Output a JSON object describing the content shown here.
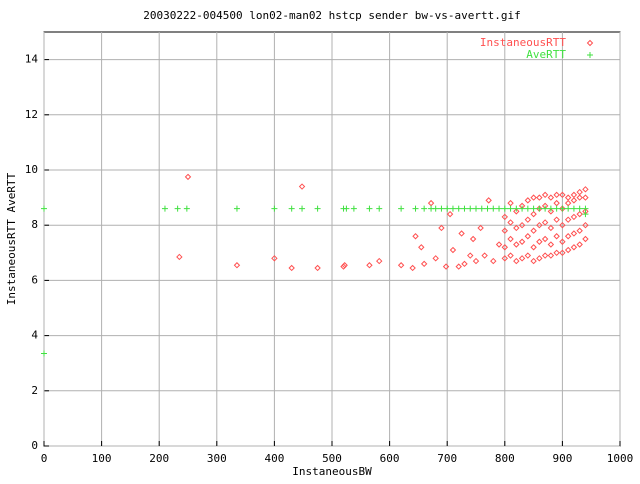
{
  "chart_data": {
    "type": "scatter",
    "title": "20030222-004500 lon02-man02 hstcp sender bw-vs-avertt.gif",
    "x_label": "InstaneousBW",
    "y_label": "InstaneousRTT AveRTT",
    "xlim": [
      0,
      1000
    ],
    "ylim": [
      0,
      15
    ],
    "xticks": [
      0,
      100,
      200,
      300,
      400,
      500,
      600,
      700,
      800,
      900,
      1000
    ],
    "yticks": [
      0,
      2,
      4,
      6,
      8,
      10,
      12,
      14
    ],
    "grid": true,
    "legend": "top-right",
    "series": [
      {
        "name": "InstaneousRTT",
        "color": "#ff5050",
        "marker": "diamond",
        "x": [
          250,
          235,
          335,
          400,
          430,
          448,
          475,
          520,
          522,
          565,
          582,
          620,
          640,
          645,
          655,
          660,
          672,
          680,
          690,
          698,
          705,
          710,
          720,
          725,
          730,
          740,
          745,
          750,
          758,
          765,
          772,
          780,
          790,
          800,
          800,
          800,
          800,
          810,
          810,
          810,
          810,
          820,
          820,
          820,
          820,
          830,
          830,
          830,
          830,
          840,
          840,
          840,
          840,
          850,
          850,
          850,
          850,
          850,
          860,
          860,
          860,
          860,
          860,
          870,
          870,
          870,
          870,
          870,
          880,
          880,
          880,
          880,
          880,
          890,
          890,
          890,
          890,
          890,
          900,
          900,
          900,
          900,
          900,
          910,
          910,
          910,
          910,
          910,
          920,
          920,
          920,
          920,
          920,
          930,
          930,
          930,
          930,
          930,
          940,
          940,
          940,
          940,
          940
        ],
        "values": [
          9.75,
          6.85,
          6.55,
          6.8,
          6.45,
          9.4,
          6.45,
          6.5,
          6.55,
          6.55,
          6.7,
          6.55,
          6.45,
          7.6,
          7.2,
          6.6,
          8.8,
          6.8,
          7.9,
          6.5,
          8.4,
          7.1,
          6.5,
          7.7,
          6.6,
          6.9,
          7.5,
          6.7,
          7.9,
          6.9,
          8.9,
          6.7,
          7.3,
          6.8,
          7.2,
          7.8,
          8.3,
          6.9,
          7.5,
          8.1,
          8.8,
          6.7,
          7.3,
          7.9,
          8.5,
          6.8,
          7.4,
          8.0,
          8.7,
          6.9,
          7.6,
          8.2,
          8.9,
          6.7,
          7.2,
          7.8,
          8.4,
          9.0,
          6.8,
          7.4,
          8.0,
          8.6,
          9.0,
          6.9,
          7.5,
          8.1,
          8.7,
          9.1,
          6.9,
          7.3,
          7.9,
          8.5,
          9.0,
          7.0,
          7.6,
          8.2,
          8.8,
          9.1,
          7.0,
          7.4,
          8.0,
          8.6,
          9.1,
          7.1,
          7.6,
          8.2,
          8.8,
          9.0,
          7.2,
          7.7,
          8.3,
          8.9,
          9.1,
          7.3,
          7.8,
          8.4,
          9.0,
          9.2,
          7.5,
          8.0,
          8.5,
          9.0,
          9.3
        ]
      },
      {
        "name": "AveRTT",
        "color": "#40e040",
        "marker": "plus",
        "x": [
          0,
          0,
          210,
          232,
          248,
          335,
          400,
          430,
          448,
          475,
          520,
          525,
          538,
          565,
          582,
          620,
          645,
          660,
          672,
          680,
          690,
          700,
          710,
          720,
          730,
          740,
          750,
          760,
          770,
          780,
          790,
          800,
          810,
          820,
          830,
          840,
          850,
          860,
          870,
          880,
          890,
          900,
          910,
          920,
          930,
          940,
          940
        ],
        "values": [
          8.6,
          3.35,
          8.6,
          8.6,
          8.6,
          8.6,
          8.6,
          8.6,
          8.6,
          8.6,
          8.6,
          8.6,
          8.6,
          8.6,
          8.6,
          8.6,
          8.6,
          8.6,
          8.6,
          8.6,
          8.6,
          8.6,
          8.6,
          8.6,
          8.6,
          8.6,
          8.6,
          8.6,
          8.6,
          8.6,
          8.6,
          8.6,
          8.6,
          8.6,
          8.6,
          8.6,
          8.6,
          8.6,
          8.6,
          8.6,
          8.6,
          8.6,
          8.6,
          8.6,
          8.6,
          8.6,
          8.4
        ]
      }
    ]
  }
}
